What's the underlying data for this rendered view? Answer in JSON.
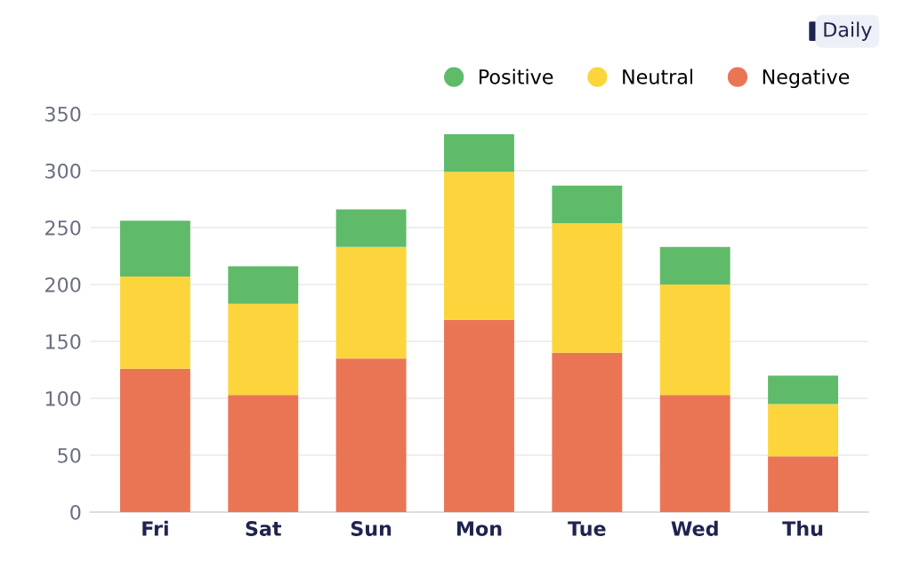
{
  "chart_data": {
    "type": "bar",
    "stacked": true,
    "categories": [
      "Fri",
      "Sat",
      "Sun",
      "Mon",
      "Tue",
      "Wed",
      "Thu"
    ],
    "series": [
      {
        "name": "Negative",
        "color": "#ea7555",
        "values": [
          126,
          103,
          135,
          169,
          140,
          103,
          49
        ]
      },
      {
        "name": "Neutral",
        "color": "#fcd53c",
        "values": [
          81,
          80,
          98,
          130,
          114,
          97,
          46
        ]
      },
      {
        "name": "Positive",
        "color": "#5fbb6a",
        "values": [
          49,
          33,
          33,
          33,
          33,
          33,
          25
        ]
      }
    ],
    "ylim": [
      0,
      350
    ],
    "yticks": [
      0,
      50,
      100,
      150,
      200,
      250,
      300,
      350
    ],
    "grid": "y",
    "legend": "top right",
    "marker": "circle",
    "annotations": [
      "Daily"
    ]
  }
}
